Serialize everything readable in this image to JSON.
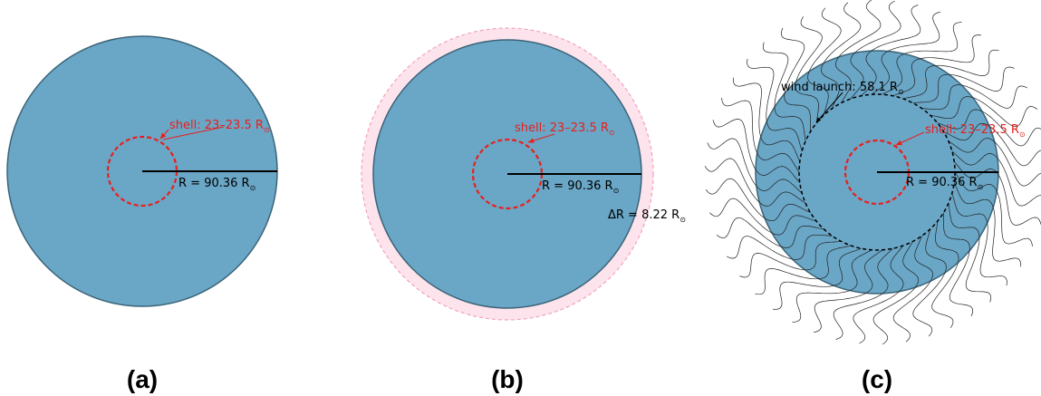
{
  "colors": {
    "star_fill": "#6aa6c6",
    "star_edge": "#3b6478",
    "shell": "#e8201c",
    "envelope_fill": "#fde3ec",
    "envelope_edge": "#f0a4bc",
    "wind_lines": "#222222"
  },
  "panels": {
    "a": {
      "tag": "(a)",
      "shell_label": "shell: 23–23.5 R",
      "radius_label": "R = 90.36 R"
    },
    "b": {
      "tag": "(b)",
      "shell_label": "shell: 23–23.5 R",
      "radius_label": "R = 90.36 R",
      "delta_label": "ΔR = 8.22 R"
    },
    "c": {
      "tag": "(c)",
      "shell_label": "shell: 23–23.5 R",
      "radius_label": "R = 90.36 R",
      "wind_label": "wind launch: 58.1 R"
    }
  },
  "sun_symbol": "⊙"
}
